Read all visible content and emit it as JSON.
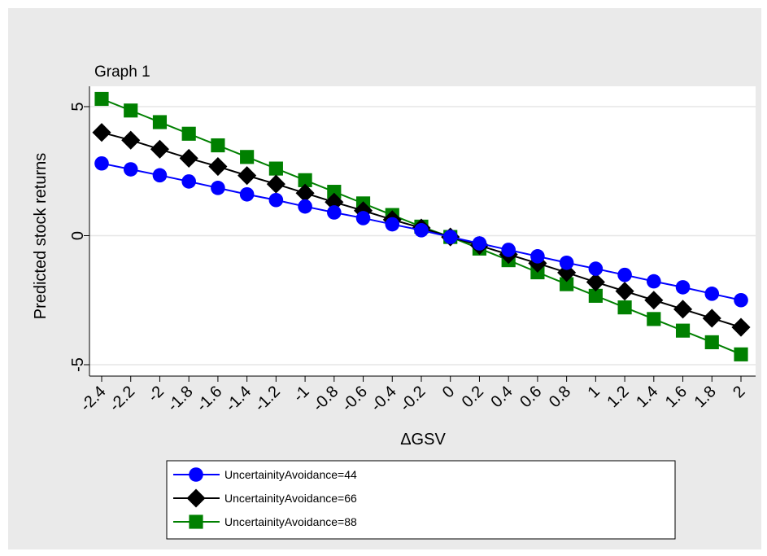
{
  "chart_data": {
    "type": "line",
    "title": "Graph 1",
    "xlabel": "ΔGSV",
    "ylabel": "Predicted stock returns",
    "x": [
      -2.4,
      -2.2,
      -2,
      -1.8,
      -1.6,
      -1.4,
      -1.2,
      -1,
      -0.8,
      -0.6,
      -0.4,
      -0.2,
      0,
      0.2,
      0.4,
      0.6,
      0.8,
      1,
      1.2,
      1.4,
      1.6,
      1.8,
      2
    ],
    "x_tick_labels": [
      "-2.4",
      "-2.2",
      "-2",
      "-1.8",
      "-1.6",
      "-1.4",
      "-1.2",
      "-1",
      "-0.8",
      "-0.6",
      "-0.4",
      "-0.2",
      "0",
      "0.2",
      "0.4",
      "0.6",
      "0.8",
      "1",
      "1.2",
      "1.4",
      "1.6",
      "1.8",
      "2"
    ],
    "y_ticks": [
      5,
      0,
      -5
    ],
    "y_tick_labels": [
      "5",
      "0",
      "-5"
    ],
    "ylim": [
      -5.5,
      5.5
    ],
    "grid": "horizontal",
    "legend_position": "bottom",
    "series": [
      {
        "name": "UncertainityAvoidance=44",
        "color": "#0000ff",
        "marker": "circle",
        "values": [
          2.8,
          2.57,
          2.34,
          2.1,
          1.85,
          1.6,
          1.38,
          1.13,
          0.9,
          0.68,
          0.44,
          0.21,
          -0.05,
          -0.3,
          -0.55,
          -0.8,
          -1.05,
          -1.28,
          -1.52,
          -1.77,
          -2.0,
          -2.25,
          -2.5
        ]
      },
      {
        "name": "UncertainityAvoidance=66",
        "color": "#000000",
        "marker": "diamond",
        "values": [
          4.0,
          3.7,
          3.35,
          3.0,
          2.68,
          2.33,
          2.0,
          1.65,
          1.3,
          0.97,
          0.62,
          0.3,
          -0.05,
          -0.38,
          -0.73,
          -1.07,
          -1.43,
          -1.8,
          -2.15,
          -2.5,
          -2.85,
          -3.2,
          -3.55
        ]
      },
      {
        "name": "UncertainityAvoidance=88",
        "color": "#008000",
        "marker": "square",
        "values": [
          5.3,
          4.85,
          4.4,
          3.95,
          3.5,
          3.05,
          2.6,
          2.15,
          1.7,
          1.25,
          0.8,
          0.35,
          -0.05,
          -0.5,
          -0.95,
          -1.42,
          -1.88,
          -2.33,
          -2.78,
          -3.23,
          -3.68,
          -4.13,
          -4.6
        ]
      }
    ]
  }
}
